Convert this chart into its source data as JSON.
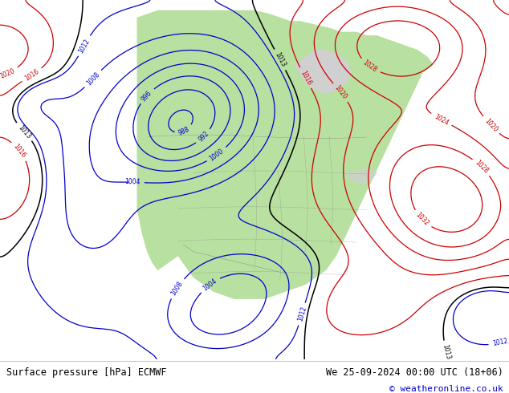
{
  "title_left": "Surface pressure [hPa] ECMWF",
  "title_right": "We 25-09-2024 00:00 UTC (18+06)",
  "copyright": "© weatheronline.co.uk",
  "bg_color": "#d0d0d0",
  "land_color": "#b8e0a0",
  "ocean_color": "#d0d0d0",
  "fig_width": 6.34,
  "fig_height": 4.9,
  "dpi": 100,
  "footer_bg": "#e0e0e0",
  "footer_text_color": "#000000",
  "copyright_color": "#0000cc",
  "isobar_blue": "#0000cc",
  "isobar_red": "#cc0000",
  "isobar_black": "#000000",
  "border_color": "#888888",
  "pressure_base": 1013.0,
  "levels_step": 4
}
